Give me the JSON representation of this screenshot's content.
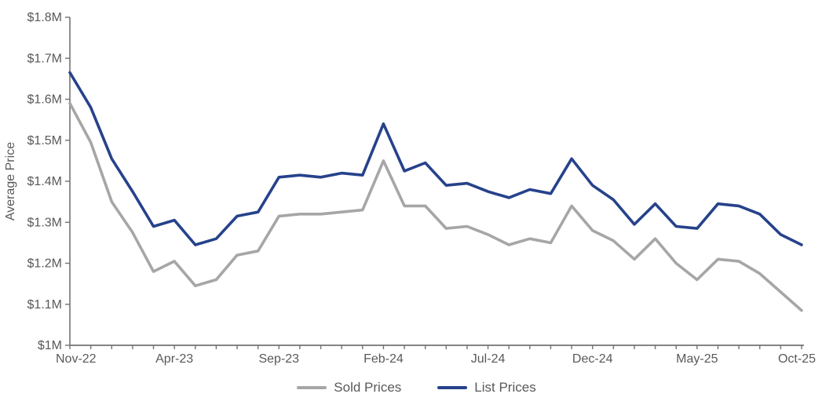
{
  "chart": {
    "y_axis_title": "Average Price",
    "legend": [
      {
        "label": "Sold Prices",
        "color": "#a6a6a6"
      },
      {
        "label": "List Prices",
        "color": "#26428b"
      }
    ],
    "axis_color": "#737373",
    "text_color": "#595959"
  },
  "chart_data": {
    "type": "line",
    "title": "",
    "xlabel": "",
    "ylabel": "Average Price",
    "x": [
      "Nov-22",
      "Dec-22",
      "Jan-23",
      "Feb-23",
      "Mar-23",
      "Apr-23",
      "May-23",
      "Jun-23",
      "Jul-23",
      "Aug-23",
      "Sep-23",
      "Oct-23",
      "Nov-23",
      "Dec-23",
      "Jan-24",
      "Feb-24",
      "Mar-24",
      "Apr-24",
      "May-24",
      "Jun-24",
      "Jul-24",
      "Aug-24",
      "Sep-24",
      "Oct-24",
      "Nov-24",
      "Dec-24",
      "Jan-25",
      "Feb-25",
      "Mar-25",
      "Apr-25",
      "May-25",
      "Jun-25",
      "Jul-25",
      "Aug-25",
      "Sep-25",
      "Oct-25"
    ],
    "x_tick_labels_shown": [
      "Nov-22",
      "Apr-23",
      "Sep-23",
      "Feb-24",
      "Jul-24",
      "Dec-24",
      "May-25",
      "Oct-25"
    ],
    "x_label_every": 5,
    "series": [
      {
        "name": "Sold Prices",
        "color": "#a6a6a6",
        "values": [
          1.59,
          1.495,
          1.35,
          1.275,
          1.18,
          1.205,
          1.145,
          1.16,
          1.22,
          1.23,
          1.315,
          1.32,
          1.32,
          1.325,
          1.33,
          1.45,
          1.34,
          1.34,
          1.285,
          1.29,
          1.27,
          1.245,
          1.26,
          1.25,
          1.34,
          1.28,
          1.255,
          1.21,
          1.26,
          1.2,
          1.16,
          1.21,
          1.205,
          1.175,
          1.13,
          1.085
        ]
      },
      {
        "name": "List Prices",
        "color": "#26428b",
        "values": [
          1.665,
          1.58,
          1.455,
          1.375,
          1.29,
          1.305,
          1.245,
          1.26,
          1.315,
          1.325,
          1.41,
          1.415,
          1.41,
          1.42,
          1.415,
          1.54,
          1.425,
          1.445,
          1.39,
          1.395,
          1.375,
          1.36,
          1.38,
          1.37,
          1.455,
          1.39,
          1.355,
          1.295,
          1.345,
          1.29,
          1.285,
          1.345,
          1.34,
          1.32,
          1.27,
          1.245
        ]
      }
    ],
    "ylim": [
      1.0,
      1.8
    ],
    "y_tick_step": 0.1,
    "y_tick_labels": [
      "$1M",
      "$1.1M",
      "$1.2M",
      "$1.3M",
      "$1.4M",
      "$1.5M",
      "$1.6M",
      "$1.7M",
      "$1.8M"
    ],
    "y_unit": "millions of dollars",
    "grid": false,
    "legend_position": "bottom"
  }
}
